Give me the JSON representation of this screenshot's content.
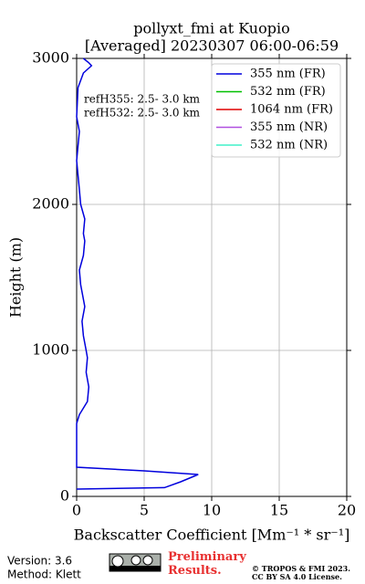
{
  "chart_data": {
    "type": "line",
    "title": "pollyxt_fmi at Kuopio",
    "subtitle": "[Averaged] 20230307 06:00-06:59",
    "x_label": "Backscatter Coefficient [Mm⁻¹ * sr⁻¹]",
    "y_label": "Height (m)",
    "annotations": [
      "refH355:  2.5- 3.0 km",
      "refH532:  2.5- 3.0 km"
    ],
    "heights": [
      50,
      60,
      100,
      150,
      175,
      200,
      500,
      560,
      650,
      750,
      850,
      950,
      1000,
      1100,
      1200,
      1300,
      1350,
      1450,
      1550,
      1650,
      1750,
      1800,
      1900,
      2000,
      2100,
      2200,
      2300,
      2400,
      2500,
      2600,
      2800,
      2900,
      2950,
      2970,
      3000
    ],
    "series": [
      {
        "name": "355 nm (FR)",
        "color": "#0000dd",
        "values": [
          0.0,
          6.5,
          7.7,
          9.0,
          5.0,
          0.0,
          0.0,
          0.2,
          0.8,
          0.9,
          0.7,
          0.8,
          0.7,
          0.5,
          0.4,
          0.6,
          0.5,
          0.3,
          0.2,
          0.5,
          0.6,
          0.5,
          0.6,
          0.3,
          0.2,
          0.1,
          0.0,
          0.1,
          0.2,
          0.0,
          0.1,
          0.5,
          1.1,
          0.9,
          0.5
        ]
      },
      {
        "name": "532 nm (FR)",
        "color": "#00c000",
        "values": [
          null,
          null,
          null,
          null,
          null,
          null,
          null,
          null,
          null,
          null,
          null,
          null,
          null,
          null,
          null,
          null,
          null,
          null,
          null,
          null,
          null,
          null,
          null,
          null,
          null,
          null,
          null,
          null,
          null,
          null,
          null,
          null,
          null,
          null,
          null
        ]
      },
      {
        "name": "1064 nm (FR)",
        "color": "#e00000",
        "values": [
          null,
          null,
          null,
          null,
          null,
          null,
          null,
          null,
          null,
          null,
          null,
          null,
          null,
          null,
          null,
          null,
          null,
          null,
          null,
          null,
          null,
          null,
          null,
          null,
          null,
          null,
          null,
          null,
          null,
          null,
          null,
          null,
          null,
          null,
          null
        ]
      },
      {
        "name": "355 nm (NR)",
        "color": "#b050e0",
        "values": [
          null,
          null,
          null,
          null,
          null,
          null,
          null,
          null,
          null,
          null,
          null,
          null,
          null,
          null,
          null,
          null,
          null,
          null,
          null,
          null,
          null,
          null,
          null,
          null,
          null,
          null,
          null,
          null,
          null,
          null,
          null,
          null,
          null,
          null,
          null
        ]
      },
      {
        "name": "532 nm (NR)",
        "color": "#40f0c8",
        "values": [
          null,
          null,
          null,
          null,
          null,
          null,
          null,
          null,
          null,
          null,
          null,
          null,
          null,
          null,
          null,
          null,
          null,
          null,
          null,
          null,
          null,
          null,
          null,
          null,
          null,
          null,
          null,
          null,
          null,
          null,
          null,
          null,
          null,
          null,
          null
        ]
      }
    ],
    "xlim": [
      0,
      20
    ],
    "xticks": [
      0,
      5,
      10,
      15,
      20
    ],
    "ylim": [
      0,
      3000
    ],
    "yticks": [
      0,
      1000,
      2000,
      3000
    ],
    "grid": true,
    "legend": "upper right"
  },
  "footer": {
    "version": "Version: 3.6",
    "method": "Method: Klett",
    "notice": "Preliminary Results.",
    "copyright": [
      "© TROPOS & FMI 2023.",
      "CC BY SA 4.0 License."
    ]
  }
}
